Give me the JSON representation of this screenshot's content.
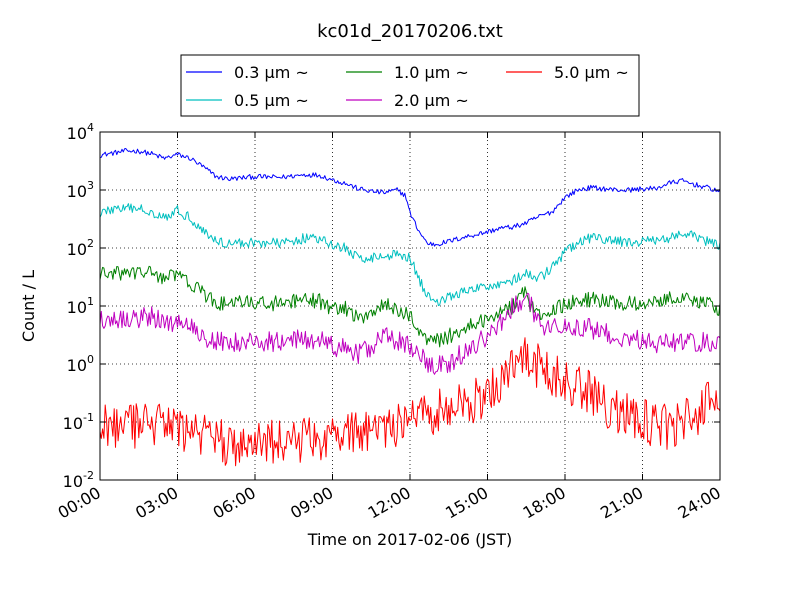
{
  "chart_data": {
    "type": "line",
    "title": "kc01d_20170206.txt",
    "xlabel": "Time on 2017-02-06 (JST)",
    "ylabel": "Count / L",
    "yscale": "log",
    "ylim": [
      0.01,
      10000
    ],
    "xlim": [
      "00:00",
      "24:00"
    ],
    "x_ticks": [
      "00:00",
      "03:00",
      "06:00",
      "09:00",
      "12:00",
      "15:00",
      "18:00",
      "21:00",
      "24:00"
    ],
    "y_ticks": [
      {
        "base": "10",
        "exp": "-2",
        "value": 0.01
      },
      {
        "base": "10",
        "exp": "-1",
        "value": 0.1
      },
      {
        "base": "10",
        "exp": "0",
        "value": 1
      },
      {
        "base": "10",
        "exp": "1",
        "value": 10
      },
      {
        "base": "10",
        "exp": "2",
        "value": 100
      },
      {
        "base": "10",
        "exp": "3",
        "value": 1000
      },
      {
        "base": "10",
        "exp": "4",
        "value": 10000
      }
    ],
    "grid": true,
    "legend_position": "top-center",
    "series": [
      {
        "name": "0.3 μm ~",
        "color": "#0000ff",
        "noise": 0.02,
        "points": [
          [
            "00:00",
            4000
          ],
          [
            "01:00",
            4700
          ],
          [
            "01:30",
            4700
          ],
          [
            "02:00",
            4200
          ],
          [
            "02:30",
            3500
          ],
          [
            "03:00",
            4100
          ],
          [
            "03:30",
            3500
          ],
          [
            "04:00",
            2500
          ],
          [
            "04:30",
            1700
          ],
          [
            "05:00",
            1550
          ],
          [
            "06:00",
            1700
          ],
          [
            "07:00",
            1650
          ],
          [
            "08:00",
            1850
          ],
          [
            "08:30",
            1800
          ],
          [
            "09:00",
            1500
          ],
          [
            "09:30",
            1300
          ],
          [
            "10:00",
            1050
          ],
          [
            "10:30",
            950
          ],
          [
            "11:00",
            900
          ],
          [
            "11:30",
            1000
          ],
          [
            "11:50",
            800
          ],
          [
            "12:00",
            400
          ],
          [
            "12:20",
            200
          ],
          [
            "12:40",
            120
          ],
          [
            "13:00",
            115
          ],
          [
            "13:30",
            130
          ],
          [
            "14:00",
            150
          ],
          [
            "15:00",
            190
          ],
          [
            "15:30",
            220
          ],
          [
            "16:00",
            230
          ],
          [
            "16:30",
            270
          ],
          [
            "17:00",
            350
          ],
          [
            "17:30",
            420
          ],
          [
            "18:00",
            750
          ],
          [
            "18:30",
            1000
          ],
          [
            "19:00",
            1100
          ],
          [
            "20:00",
            1000
          ],
          [
            "20:30",
            1000
          ],
          [
            "21:00",
            1050
          ],
          [
            "21:30",
            1050
          ],
          [
            "22:00",
            1300
          ],
          [
            "22:30",
            1450
          ],
          [
            "23:00",
            1250
          ],
          [
            "23:30",
            1100
          ],
          [
            "24:00",
            950
          ]
        ]
      },
      {
        "name": "0.5 μm ~",
        "color": "#00bfbf",
        "noise": 0.04,
        "points": [
          [
            "00:00",
            400
          ],
          [
            "00:30",
            470
          ],
          [
            "01:30",
            480
          ],
          [
            "02:00",
            420
          ],
          [
            "02:30",
            350
          ],
          [
            "03:00",
            440
          ],
          [
            "03:30",
            330
          ],
          [
            "04:00",
            200
          ],
          [
            "04:30",
            130
          ],
          [
            "05:00",
            120
          ],
          [
            "06:00",
            125
          ],
          [
            "07:00",
            120
          ],
          [
            "08:00",
            150
          ],
          [
            "08:30",
            140
          ],
          [
            "09:00",
            110
          ],
          [
            "09:30",
            100
          ],
          [
            "10:00",
            65
          ],
          [
            "10:30",
            70
          ],
          [
            "11:00",
            70
          ],
          [
            "11:30",
            80
          ],
          [
            "12:00",
            70
          ],
          [
            "12:20",
            30
          ],
          [
            "12:40",
            15
          ],
          [
            "13:00",
            12
          ],
          [
            "13:30",
            14
          ],
          [
            "14:00",
            17
          ],
          [
            "15:00",
            22
          ],
          [
            "16:00",
            28
          ],
          [
            "16:30",
            35
          ],
          [
            "17:00",
            30
          ],
          [
            "17:30",
            45
          ],
          [
            "18:00",
            85
          ],
          [
            "18:30",
            120
          ],
          [
            "19:00",
            150
          ],
          [
            "20:00",
            130
          ],
          [
            "21:00",
            125
          ],
          [
            "22:00",
            150
          ],
          [
            "22:30",
            170
          ],
          [
            "23:00",
            160
          ],
          [
            "23:30",
            130
          ],
          [
            "24:00",
            105
          ]
        ]
      },
      {
        "name": "1.0 μm ~",
        "color": "#008000",
        "noise": 0.06,
        "points": [
          [
            "00:00",
            35
          ],
          [
            "01:00",
            37
          ],
          [
            "02:00",
            38
          ],
          [
            "02:30",
            30
          ],
          [
            "03:00",
            35
          ],
          [
            "03:30",
            25
          ],
          [
            "04:00",
            16
          ],
          [
            "04:30",
            11
          ],
          [
            "05:00",
            11
          ],
          [
            "06:00",
            11.5
          ],
          [
            "07:00",
            11
          ],
          [
            "08:00",
            12.5
          ],
          [
            "08:30",
            12
          ],
          [
            "09:00",
            9
          ],
          [
            "09:30",
            9
          ],
          [
            "10:00",
            6
          ],
          [
            "10:30",
            8
          ],
          [
            "11:00",
            11
          ],
          [
            "11:30",
            8
          ],
          [
            "12:00",
            7
          ],
          [
            "12:30",
            3
          ],
          [
            "13:00",
            2.5
          ],
          [
            "13:30",
            3
          ],
          [
            "14:00",
            4
          ],
          [
            "15:00",
            6
          ],
          [
            "15:30",
            8
          ],
          [
            "16:00",
            10
          ],
          [
            "16:20",
            22
          ],
          [
            "16:40",
            10
          ],
          [
            "17:00",
            7
          ],
          [
            "17:30",
            8
          ],
          [
            "18:00",
            11
          ],
          [
            "18:30",
            12
          ],
          [
            "19:00",
            13
          ],
          [
            "20:00",
            11
          ],
          [
            "21:00",
            11
          ],
          [
            "22:00",
            14
          ],
          [
            "22:30",
            14
          ],
          [
            "23:00",
            13
          ],
          [
            "24:00",
            9
          ]
        ]
      },
      {
        "name": "2.0 μm ~",
        "color": "#bf00bf",
        "noise": 0.08,
        "points": [
          [
            "00:00",
            6
          ],
          [
            "01:00",
            6
          ],
          [
            "02:00",
            6.5
          ],
          [
            "02:30",
            5
          ],
          [
            "03:00",
            5.5
          ],
          [
            "03:30",
            4.5
          ],
          [
            "04:00",
            3
          ],
          [
            "04:30",
            2.5
          ],
          [
            "05:00",
            2.3
          ],
          [
            "06:00",
            2.5
          ],
          [
            "07:00",
            2.4
          ],
          [
            "08:00",
            2.7
          ],
          [
            "08:30",
            2.5
          ],
          [
            "09:00",
            2
          ],
          [
            "09:30",
            1.8
          ],
          [
            "10:00",
            1.5
          ],
          [
            "10:30",
            2
          ],
          [
            "11:00",
            3
          ],
          [
            "11:30",
            2.5
          ],
          [
            "12:00",
            2
          ],
          [
            "12:20",
            1.5
          ],
          [
            "12:40",
            1.0
          ],
          [
            "13:00",
            0.9
          ],
          [
            "13:30",
            1.0
          ],
          [
            "14:00",
            1.5
          ],
          [
            "15:00",
            3
          ],
          [
            "15:30",
            5
          ],
          [
            "16:00",
            10
          ],
          [
            "16:30",
            15
          ],
          [
            "17:00",
            5
          ],
          [
            "17:30",
            4
          ],
          [
            "18:00",
            5
          ],
          [
            "19:00",
            4
          ],
          [
            "20:00",
            3
          ],
          [
            "21:00",
            2.5
          ],
          [
            "22:00",
            2.2
          ],
          [
            "23:00",
            2.5
          ],
          [
            "24:00",
            2.2
          ]
        ]
      },
      {
        "name": "5.0 μm ~",
        "color": "#ff0000",
        "noise": 0.18,
        "points": [
          [
            "00:00",
            0.1
          ],
          [
            "01:00",
            0.08
          ],
          [
            "02:00",
            0.09
          ],
          [
            "03:00",
            0.08
          ],
          [
            "04:00",
            0.06
          ],
          [
            "05:00",
            0.04
          ],
          [
            "06:00",
            0.04
          ],
          [
            "07:00",
            0.05
          ],
          [
            "08:00",
            0.05
          ],
          [
            "09:00",
            0.06
          ],
          [
            "10:00",
            0.07
          ],
          [
            "11:00",
            0.08
          ],
          [
            "12:00",
            0.1
          ],
          [
            "13:00",
            0.15
          ],
          [
            "14:00",
            0.2
          ],
          [
            "15:00",
            0.3
          ],
          [
            "15:30",
            0.5
          ],
          [
            "16:00",
            0.8
          ],
          [
            "16:30",
            1.2
          ],
          [
            "17:00",
            0.9
          ],
          [
            "17:30",
            0.6
          ],
          [
            "18:00",
            0.5
          ],
          [
            "19:00",
            0.3
          ],
          [
            "20:00",
            0.15
          ],
          [
            "21:00",
            0.1
          ],
          [
            "22:00",
            0.08
          ],
          [
            "23:00",
            0.12
          ],
          [
            "23:40",
            0.3
          ],
          [
            "24:00",
            0.1
          ]
        ]
      }
    ]
  }
}
